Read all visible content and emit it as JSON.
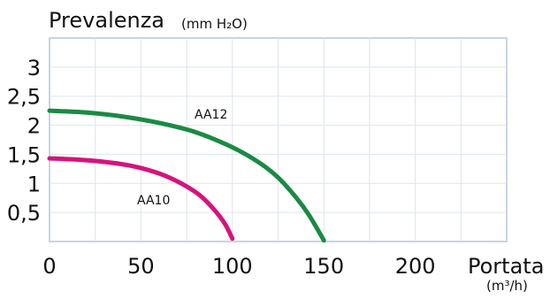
{
  "chart_data": {
    "type": "line",
    "ylabel": "Prevalenza",
    "yunit": "(mm H₂O)",
    "xlabel": "Portata",
    "xunit": "(m³/h)",
    "xlim": [
      0,
      250
    ],
    "ylim": [
      0,
      3.5
    ],
    "xticks": [
      {
        "value": 0,
        "label": "0"
      },
      {
        "value": 50,
        "label": "50"
      },
      {
        "value": 100,
        "label": "100"
      },
      {
        "value": 150,
        "label": "150"
      },
      {
        "value": 200,
        "label": "200"
      }
    ],
    "yticks": [
      {
        "value": 0.5,
        "label": "0,5"
      },
      {
        "value": 1,
        "label": "1"
      },
      {
        "value": 1.5,
        "label": "1,5"
      },
      {
        "value": 2,
        "label": "2"
      },
      {
        "value": 2.5,
        "label": "2,5"
      },
      {
        "value": 3,
        "label": "3"
      }
    ],
    "grid": true,
    "series": [
      {
        "name": "AA12",
        "color": "#1a8a43",
        "x": [
          0,
          20,
          40,
          60,
          80,
          100,
          115,
          125,
          135,
          142,
          150
        ],
        "y": [
          2.25,
          2.22,
          2.15,
          2.04,
          1.88,
          1.62,
          1.35,
          1.1,
          0.75,
          0.45,
          0.02
        ]
      },
      {
        "name": "AA10",
        "color": "#d6137c",
        "x": [
          0,
          15,
          30,
          45,
          60,
          72,
          82,
          90,
          96,
          100
        ],
        "y": [
          1.43,
          1.41,
          1.37,
          1.3,
          1.17,
          1.0,
          0.8,
          0.55,
          0.3,
          0.05
        ]
      }
    ]
  }
}
